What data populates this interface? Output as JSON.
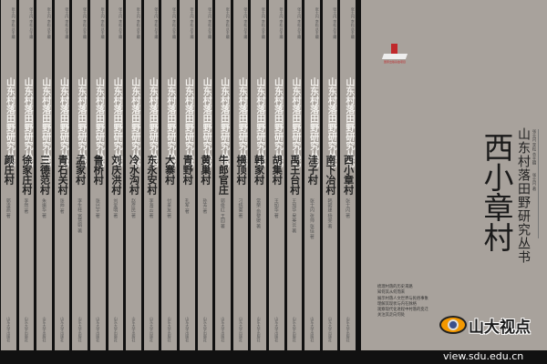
{
  "series_title": "山东村落田野研究丛书",
  "editors": "张士闪 李松 总主编",
  "publisher": "山东大学出版社",
  "spines": [
    {
      "title": "颜庄村",
      "author": "郭凌燕 著"
    },
    {
      "title": "徐家庄村",
      "author": "李然 著"
    },
    {
      "title": "三德范村",
      "author": "朱振华 著"
    },
    {
      "title": "青石关村",
      "author": "张帅 著"
    },
    {
      "title": "孟家村",
      "author": "李生柱 宫慧娟 著"
    },
    {
      "title": "鲁桥村",
      "author": "张兴宇 著"
    },
    {
      "title": "刘庆洪村",
      "author": "刘爱明 著"
    },
    {
      "title": "冷水沟村",
      "author": "赵彦民 著"
    },
    {
      "title": "东永安村",
      "author": "李海云 著"
    },
    {
      "title": "大寨村",
      "author": "付来友 著"
    },
    {
      "title": "青野村",
      "author": "孔军 著"
    },
    {
      "title": "黄巢村",
      "author": "孙芳 著"
    },
    {
      "title": "牛郎官庄",
      "author": "郭俊红 王园 著"
    },
    {
      "title": "横顶村",
      "author": "刁统菊 著"
    },
    {
      "title": "韩家村",
      "author": "常荣 俞黎媛 著"
    },
    {
      "title": "胡集村",
      "author": "王加华 著"
    },
    {
      "title": "禹王台村",
      "author": "王加华 吴美云 著"
    },
    {
      "title": "洼子村",
      "author": "张士闪 张帅 张佳 著"
    },
    {
      "title": "南下冶村",
      "author": "韩朝建 杨雯 著"
    },
    {
      "title": "西小章村",
      "author": "张士闪 著"
    }
  ],
  "cover": {
    "title": "西小章村",
    "series": "山东村落田野研究丛书",
    "credit": "张士闪 李松 总主编　　张士闪 著",
    "logo_text": "国家出版基金项目",
    "lines": [
      "梳理村落的历史来路",
      "知何其从何而来",
      "展示村落人文世界与民俗事象",
      "理解其现状与内在脉络",
      "观察现代化进程中村落的变迁",
      "关注其走向何处"
    ]
  },
  "watermark": {
    "name": "山大视点",
    "url": "view.sdu.edu.cn",
    "colors": {
      "orange": "#f39800",
      "blue": "#3b4f8a"
    }
  }
}
